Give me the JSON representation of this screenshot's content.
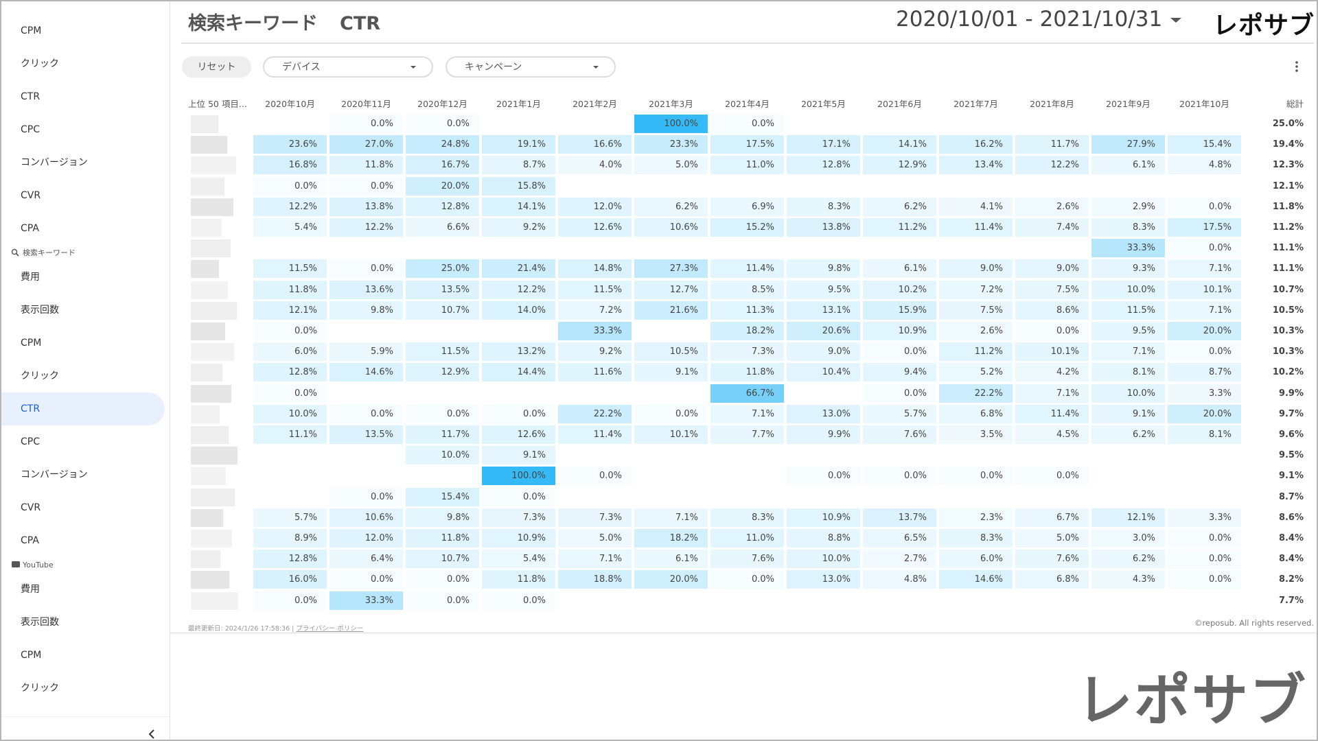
{
  "sidebar": {
    "items": [
      {
        "label": "CPM"
      },
      {
        "label": "クリック"
      },
      {
        "label": "CTR"
      },
      {
        "label": "CPC"
      },
      {
        "label": "コンバージョン"
      },
      {
        "label": "CVR"
      },
      {
        "label": "CPA"
      },
      {
        "section": "検索キーワード",
        "icon": "search"
      },
      {
        "label": "費用"
      },
      {
        "label": "表示回数"
      },
      {
        "label": "CPM"
      },
      {
        "label": "クリック"
      },
      {
        "label": "CTR",
        "active": true
      },
      {
        "label": "CPC"
      },
      {
        "label": "コンバージョン"
      },
      {
        "label": "CVR"
      },
      {
        "label": "CPA"
      },
      {
        "section": "YouTube",
        "icon": "tv"
      },
      {
        "label": "費用"
      },
      {
        "label": "表示回数"
      },
      {
        "label": "CPM"
      },
      {
        "label": "クリック"
      }
    ]
  },
  "header": {
    "title": "検索キーワード",
    "metric": "CTR",
    "date_range": "2020/10/01 - 2021/10/31",
    "logo": "レポサブ"
  },
  "filters": {
    "reset": "リセット",
    "dropdowns": [
      "デバイス",
      "キャンペーン"
    ]
  },
  "table": {
    "corner": "上位 50 項目...",
    "columns": [
      "2020年10月",
      "2020年11月",
      "2020年12月",
      "2021年1月",
      "2021年2月",
      "2021年3月",
      "2021年4月",
      "2021年5月",
      "2021年6月",
      "2021年7月",
      "2021年8月",
      "2021年9月",
      "2021年10月"
    ],
    "total_header": "総計",
    "rows": [
      {
        "cells": [
          null,
          "0.0%",
          "0.0%",
          null,
          null,
          "100.0%",
          "0.0%",
          null,
          null,
          null,
          null,
          null,
          null
        ],
        "total": "25.0%"
      },
      {
        "cells": [
          "23.6%",
          "27.0%",
          "24.8%",
          "19.1%",
          "16.6%",
          "23.3%",
          "17.5%",
          "17.1%",
          "14.1%",
          "16.2%",
          "11.7%",
          "27.9%",
          "15.4%"
        ],
        "total": "19.4%"
      },
      {
        "cells": [
          "16.8%",
          "11.8%",
          "16.7%",
          "8.7%",
          "4.0%",
          "5.0%",
          "11.0%",
          "12.8%",
          "12.9%",
          "13.4%",
          "12.2%",
          "6.1%",
          "4.8%"
        ],
        "total": "12.3%"
      },
      {
        "cells": [
          "0.0%",
          "0.0%",
          "20.0%",
          "15.8%",
          null,
          null,
          null,
          null,
          null,
          null,
          null,
          null,
          null
        ],
        "total": "12.1%"
      },
      {
        "cells": [
          "12.2%",
          "13.8%",
          "12.8%",
          "14.1%",
          "12.0%",
          "6.2%",
          "6.9%",
          "8.3%",
          "6.2%",
          "4.1%",
          "2.6%",
          "2.9%",
          "0.0%"
        ],
        "total": "11.8%"
      },
      {
        "cells": [
          "5.4%",
          "12.2%",
          "6.6%",
          "9.2%",
          "12.6%",
          "10.6%",
          "15.2%",
          "13.8%",
          "11.2%",
          "11.4%",
          "7.4%",
          "8.3%",
          "17.5%"
        ],
        "total": "11.2%"
      },
      {
        "cells": [
          null,
          null,
          null,
          null,
          null,
          null,
          null,
          null,
          null,
          null,
          null,
          "33.3%",
          "0.0%"
        ],
        "total": "11.1%"
      },
      {
        "cells": [
          "11.5%",
          "0.0%",
          "25.0%",
          "21.4%",
          "14.8%",
          "27.3%",
          "11.4%",
          "9.8%",
          "6.1%",
          "9.0%",
          "9.0%",
          "9.3%",
          "7.1%"
        ],
        "total": "11.1%"
      },
      {
        "cells": [
          "11.8%",
          "13.6%",
          "13.5%",
          "12.2%",
          "11.5%",
          "12.7%",
          "8.5%",
          "9.5%",
          "10.2%",
          "7.2%",
          "7.5%",
          "10.0%",
          "10.1%"
        ],
        "total": "10.7%"
      },
      {
        "cells": [
          "12.1%",
          "9.8%",
          "10.7%",
          "14.0%",
          "7.2%",
          "21.6%",
          "11.3%",
          "13.1%",
          "15.9%",
          "7.5%",
          "8.6%",
          "11.5%",
          "7.1%"
        ],
        "total": "10.5%"
      },
      {
        "cells": [
          "0.0%",
          null,
          null,
          null,
          "33.3%",
          null,
          "18.2%",
          "20.6%",
          "10.9%",
          "2.6%",
          "0.0%",
          "9.5%",
          "20.0%"
        ],
        "total": "10.3%"
      },
      {
        "cells": [
          "6.0%",
          "5.9%",
          "11.5%",
          "13.2%",
          "9.2%",
          "10.5%",
          "7.3%",
          "9.0%",
          "0.0%",
          "11.2%",
          "10.1%",
          "7.1%",
          "0.0%"
        ],
        "total": "10.3%"
      },
      {
        "cells": [
          "12.8%",
          "14.6%",
          "12.9%",
          "14.4%",
          "11.6%",
          "9.1%",
          "11.8%",
          "10.4%",
          "9.4%",
          "5.2%",
          "4.2%",
          "8.1%",
          "8.7%"
        ],
        "total": "10.2%"
      },
      {
        "cells": [
          "0.0%",
          null,
          null,
          null,
          null,
          null,
          "66.7%",
          null,
          "0.0%",
          "22.2%",
          "7.1%",
          "10.0%",
          "3.3%"
        ],
        "total": "9.9%"
      },
      {
        "cells": [
          "10.0%",
          "0.0%",
          "0.0%",
          "0.0%",
          "22.2%",
          "0.0%",
          "7.1%",
          "13.0%",
          "5.7%",
          "6.8%",
          "11.4%",
          "9.1%",
          "20.0%"
        ],
        "total": "9.7%"
      },
      {
        "cells": [
          "11.1%",
          "13.5%",
          "11.7%",
          "12.6%",
          "11.4%",
          "10.1%",
          "7.7%",
          "9.9%",
          "7.6%",
          "3.5%",
          "4.5%",
          "6.2%",
          "8.1%"
        ],
        "total": "9.6%"
      },
      {
        "cells": [
          null,
          null,
          "10.0%",
          "9.1%",
          null,
          null,
          null,
          null,
          null,
          null,
          null,
          null,
          null
        ],
        "total": "9.5%"
      },
      {
        "cells": [
          null,
          null,
          null,
          "100.0%",
          "0.0%",
          null,
          null,
          "0.0%",
          "0.0%",
          "0.0%",
          "0.0%",
          null,
          null
        ],
        "total": "9.1%"
      },
      {
        "cells": [
          null,
          "0.0%",
          "15.4%",
          "0.0%",
          null,
          null,
          null,
          null,
          null,
          null,
          null,
          null,
          null
        ],
        "total": "8.7%"
      },
      {
        "cells": [
          "5.7%",
          "10.6%",
          "9.8%",
          "7.3%",
          "7.3%",
          "7.1%",
          "8.3%",
          "10.9%",
          "13.7%",
          "2.3%",
          "6.7%",
          "12.1%",
          "3.3%"
        ],
        "total": "8.6%"
      },
      {
        "cells": [
          "8.9%",
          "12.0%",
          "11.8%",
          "10.9%",
          "5.0%",
          "18.2%",
          "11.0%",
          "8.8%",
          "6.5%",
          "8.3%",
          "5.0%",
          "3.0%",
          "0.0%"
        ],
        "total": "8.4%"
      },
      {
        "cells": [
          "12.8%",
          "6.4%",
          "10.7%",
          "5.4%",
          "7.1%",
          "6.1%",
          "7.6%",
          "10.0%",
          "2.7%",
          "6.0%",
          "7.6%",
          "6.2%",
          "0.0%"
        ],
        "total": "8.4%"
      },
      {
        "cells": [
          "16.0%",
          "0.0%",
          "0.0%",
          "11.8%",
          "18.8%",
          "20.0%",
          "0.0%",
          "13.0%",
          "4.8%",
          "14.6%",
          "6.8%",
          "4.3%",
          "0.0%"
        ],
        "total": "8.2%"
      },
      {
        "cells": [
          "0.0%",
          "33.3%",
          "0.0%",
          "0.0%",
          null,
          null,
          null,
          null,
          null,
          null,
          null,
          null,
          null
        ],
        "total": "7.7%"
      }
    ]
  },
  "footer": {
    "updated": "最終更新日: 2024/1/26 17:58:36",
    "privacy": "プライバシー ポリシー",
    "copyright": "©reposub. All rights reserved."
  },
  "watermark_logo": "レポサブ"
}
